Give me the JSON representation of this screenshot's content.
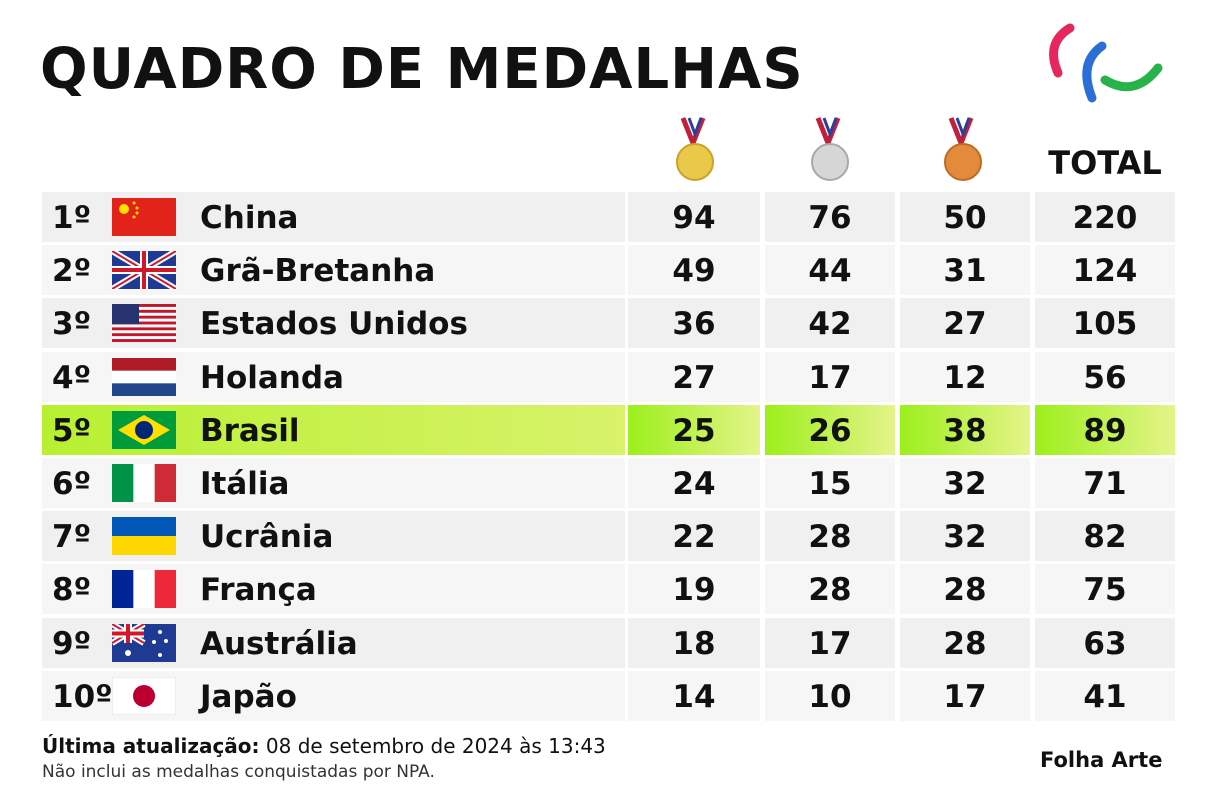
{
  "header": {
    "title": "QUADRO DE MEDALHAS"
  },
  "table": {
    "total_header": "TOTAL",
    "rows": [
      [
        "1º",
        "China",
        "94",
        "76",
        "50",
        "220"
      ],
      [
        "2º",
        "Grã-Bretanha",
        "49",
        "44",
        "31",
        "124"
      ],
      [
        "3º",
        "Estados Unidos",
        "36",
        "42",
        "27",
        "105"
      ],
      [
        "4º",
        "Holanda",
        "27",
        "17",
        "12",
        "56"
      ],
      [
        "5º",
        "Brasil",
        "25",
        "26",
        "38",
        "89"
      ],
      [
        "6º",
        "Itália",
        "24",
        "15",
        "32",
        "71"
      ],
      [
        "7º",
        "Ucrânia",
        "22",
        "28",
        "32",
        "82"
      ],
      [
        "8º",
        "França",
        "19",
        "28",
        "28",
        "75"
      ],
      [
        "9º",
        "Austrália",
        "18",
        "17",
        "28",
        "63"
      ],
      [
        "10º",
        "Japão",
        "14",
        "10",
        "17",
        "41"
      ]
    ]
  },
  "footer": {
    "update_label": "Última atualização:",
    "update_value": "08 de setembro de 2024 às 13:43",
    "note": "Não inclui as medalhas conquistadas por NPA.",
    "credit": "Folha Arte"
  }
}
